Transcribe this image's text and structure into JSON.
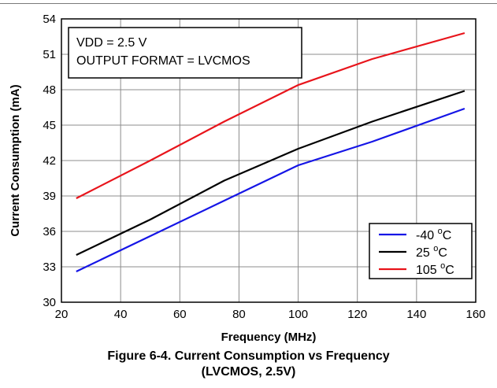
{
  "chart_data": {
    "type": "line",
    "xlabel": "Frequency (MHz)",
    "ylabel": "Current Consumption (mA)",
    "xlim": [
      20,
      160
    ],
    "ylim": [
      30,
      54
    ],
    "xticks": [
      20,
      40,
      60,
      80,
      100,
      120,
      140,
      160
    ],
    "yticks": [
      30,
      33,
      36,
      39,
      42,
      45,
      48,
      51,
      54
    ],
    "grid": true,
    "legend_position": "bottom-right",
    "annotation": [
      "VDD = 2.5 V",
      "OUTPUT FORMAT = LVCMOS"
    ],
    "series": [
      {
        "name": "-40",
        "unit": "C",
        "color": "#1515e6",
        "x": [
          25,
          50,
          75,
          100,
          125,
          156.25
        ],
        "y": [
          32.6,
          35.6,
          38.6,
          41.6,
          43.6,
          46.4
        ]
      },
      {
        "name": "25",
        "unit": "C",
        "color": "#000000",
        "x": [
          25,
          50,
          75,
          100,
          125,
          156.25
        ],
        "y": [
          34.0,
          37.0,
          40.3,
          43.0,
          45.3,
          47.9
        ]
      },
      {
        "name": "105",
        "unit": "C",
        "color": "#e8141b",
        "x": [
          25,
          50,
          75,
          100,
          125,
          156.25
        ],
        "y": [
          38.8,
          42.0,
          45.3,
          48.4,
          50.6,
          52.8
        ]
      }
    ]
  },
  "caption": {
    "line1": "Figure 6-4. Current Consumption vs Frequency",
    "line2": "(LVCMOS, 2.5V)"
  }
}
